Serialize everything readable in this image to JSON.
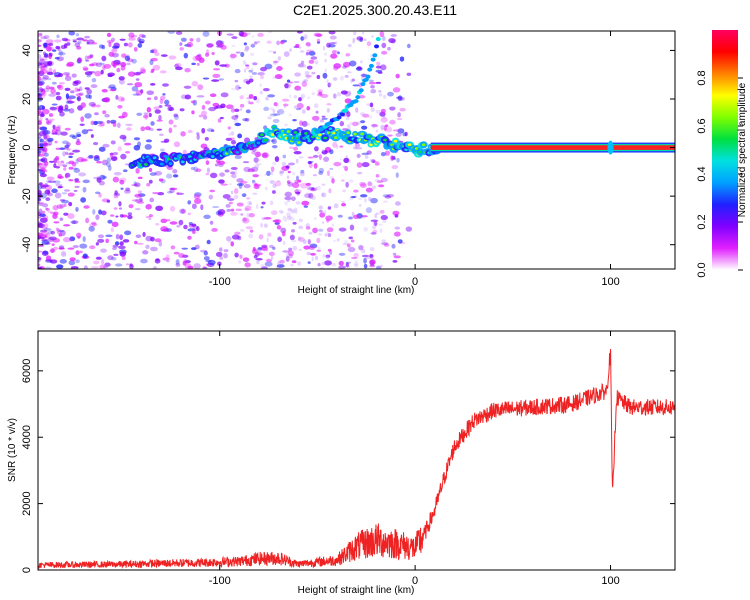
{
  "title": "C2E1.2025.300.20.43.E11",
  "chart_data": [
    {
      "type": "heatmap",
      "title": "C2E1.2025.300.20.43.E11",
      "xlabel": "Height of straight line (km)",
      "ylabel": "Frequency (Hz)",
      "xlim": [
        -193,
        133
      ],
      "ylim": [
        -50,
        48
      ],
      "xticks": [
        -100,
        0,
        100
      ],
      "xtick_labels": [
        "-100",
        "0",
        "100"
      ],
      "yticks": [
        -40,
        -20,
        0,
        20,
        40
      ],
      "ytick_labels": [
        "-40",
        "-20",
        "0",
        "20",
        "40"
      ],
      "colorbar": {
        "label": "Normalized spectral amplitude",
        "range": [
          0,
          1
        ],
        "ticks": [
          0.0,
          0.2,
          0.4,
          0.6,
          0.8
        ],
        "tick_labels": [
          "0.0",
          "0.2",
          "0.4",
          "0.6",
          "0.8"
        ],
        "colors": [
          "#ffffff",
          "#e020ff",
          "#8000ff",
          "#2020ff",
          "#00a0ff",
          "#00e0e0",
          "#00e040",
          "#80ff00",
          "#ffff00",
          "#ff8000",
          "#ff0000",
          "#ff0060"
        ]
      },
      "ridge": [
        {
          "x": -145,
          "y": -6
        },
        {
          "x": -130,
          "y": -5
        },
        {
          "x": -115,
          "y": -4
        },
        {
          "x": -100,
          "y": -2
        },
        {
          "x": -85,
          "y": 1
        },
        {
          "x": -72,
          "y": 7
        },
        {
          "x": -60,
          "y": 4
        },
        {
          "x": -45,
          "y": 6
        },
        {
          "x": -30,
          "y": 4
        },
        {
          "x": -15,
          "y": 2
        },
        {
          "x": -5,
          "y": 0
        },
        {
          "x": 0,
          "y": -1
        },
        {
          "x": 10,
          "y": 0
        },
        {
          "x": 133,
          "y": 0
        }
      ],
      "branch": [
        {
          "x": -52,
          "y": 6
        },
        {
          "x": -40,
          "y": 12
        },
        {
          "x": -30,
          "y": 20
        },
        {
          "x": -24,
          "y": 30
        },
        {
          "x": -20,
          "y": 40
        },
        {
          "x": -18,
          "y": 48
        }
      ]
    },
    {
      "type": "line",
      "xlabel": "Height of straight line (km)",
      "ylabel": "SNR (10 * v/v)",
      "xlim": [
        -193,
        133
      ],
      "ylim": [
        0,
        7200
      ],
      "xticks": [
        -100,
        0,
        100
      ],
      "xtick_labels": [
        "-100",
        "0",
        "100"
      ],
      "yticks": [
        0,
        2000,
        4000,
        6000
      ],
      "ytick_labels": [
        "0",
        "2000",
        "4000",
        "6000"
      ],
      "color": "#ee2222",
      "series": [
        {
          "name": "SNR",
          "x": [
            -193,
            -170,
            -150,
            -130,
            -110,
            -90,
            -80,
            -70,
            -60,
            -40,
            -30,
            -20,
            -10,
            0,
            5,
            10,
            15,
            20,
            25,
            30,
            40,
            60,
            80,
            98,
            100,
            101,
            103,
            110,
            133
          ],
          "y": [
            150,
            160,
            170,
            200,
            220,
            260,
            340,
            360,
            180,
            300,
            700,
            900,
            800,
            650,
            1100,
            1800,
            2800,
            3700,
            4100,
            4500,
            4800,
            4900,
            5000,
            5400,
            6600,
            2100,
            5200,
            4900,
            4900
          ]
        }
      ]
    }
  ]
}
